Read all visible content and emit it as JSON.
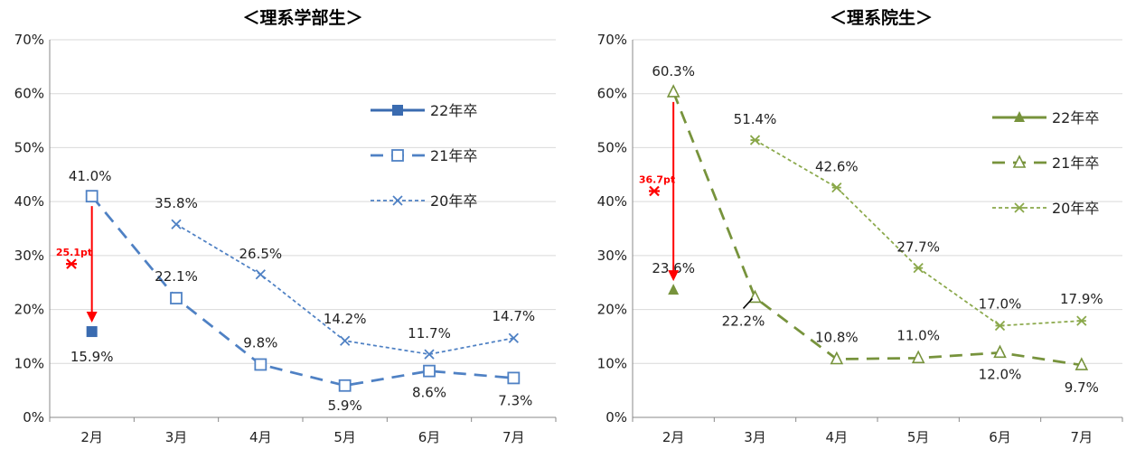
{
  "chart_data": [
    {
      "type": "line",
      "title": "＜理系学部生＞",
      "categories": [
        "2月",
        "3月",
        "4月",
        "5月",
        "6月",
        "7月"
      ],
      "ylim": [
        0,
        70
      ],
      "yticks": [
        "0%",
        "10%",
        "20%",
        "30%",
        "40%",
        "50%",
        "60%",
        "70%"
      ],
      "grid": true,
      "legend_position": "right",
      "series": [
        {
          "name": "22年卒",
          "values": [
            15.9,
            null,
            null,
            null,
            null,
            null
          ],
          "labels": [
            "15.9%",
            "",
            "",
            "",
            "",
            ""
          ],
          "color": "#3a6bb0",
          "marker": "filled-square",
          "line": "solid"
        },
        {
          "name": "21年卒",
          "values": [
            41.0,
            22.1,
            9.8,
            5.9,
            8.6,
            7.3
          ],
          "labels": [
            "41.0%",
            "22.1%",
            "9.8%",
            "5.9%",
            "8.6%",
            "7.3%"
          ],
          "color": "#4f81c4",
          "marker": "open-square",
          "line": "long-dash"
        },
        {
          "name": "20年卒",
          "values": [
            null,
            35.8,
            26.5,
            14.2,
            11.7,
            14.7
          ],
          "labels": [
            "",
            "35.8%",
            "26.5%",
            "14.2%",
            "11.7%",
            "14.7%"
          ],
          "color": "#4f81c4",
          "marker": "x",
          "line": "short-dash"
        }
      ],
      "annotation": {
        "label": "25.1pt",
        "from": 41.0,
        "to": 15.9,
        "color": "#ff0000"
      }
    },
    {
      "type": "line",
      "title": "＜理系院生＞",
      "categories": [
        "2月",
        "3月",
        "4月",
        "5月",
        "6月",
        "7月"
      ],
      "ylim": [
        0,
        70
      ],
      "yticks": [
        "0%",
        "10%",
        "20%",
        "30%",
        "40%",
        "50%",
        "60%",
        "70%"
      ],
      "grid": true,
      "legend_position": "right",
      "series": [
        {
          "name": "22年卒",
          "values": [
            23.6,
            null,
            null,
            null,
            null,
            null
          ],
          "labels": [
            "23.6%",
            "",
            "",
            "",
            "",
            ""
          ],
          "color": "#77933c",
          "marker": "filled-triangle",
          "line": "solid"
        },
        {
          "name": "21年卒",
          "values": [
            60.3,
            22.2,
            10.8,
            11.0,
            12.0,
            9.7
          ],
          "labels": [
            "60.3%",
            "22.2%",
            "10.8%",
            "11.0%",
            "12.0%",
            "9.7%"
          ],
          "color": "#77933c",
          "marker": "open-triangle",
          "line": "long-dash"
        },
        {
          "name": "20年卒",
          "values": [
            null,
            51.4,
            42.6,
            27.7,
            17.0,
            17.9
          ],
          "labels": [
            "",
            "51.4%",
            "42.6%",
            "27.7%",
            "17.0%",
            "17.9%"
          ],
          "color": "#8aa84a",
          "marker": "asterisk",
          "line": "short-dash"
        }
      ],
      "annotation": {
        "label": "36.7pt",
        "from": 60.3,
        "to": 23.6,
        "color": "#ff0000"
      }
    }
  ]
}
